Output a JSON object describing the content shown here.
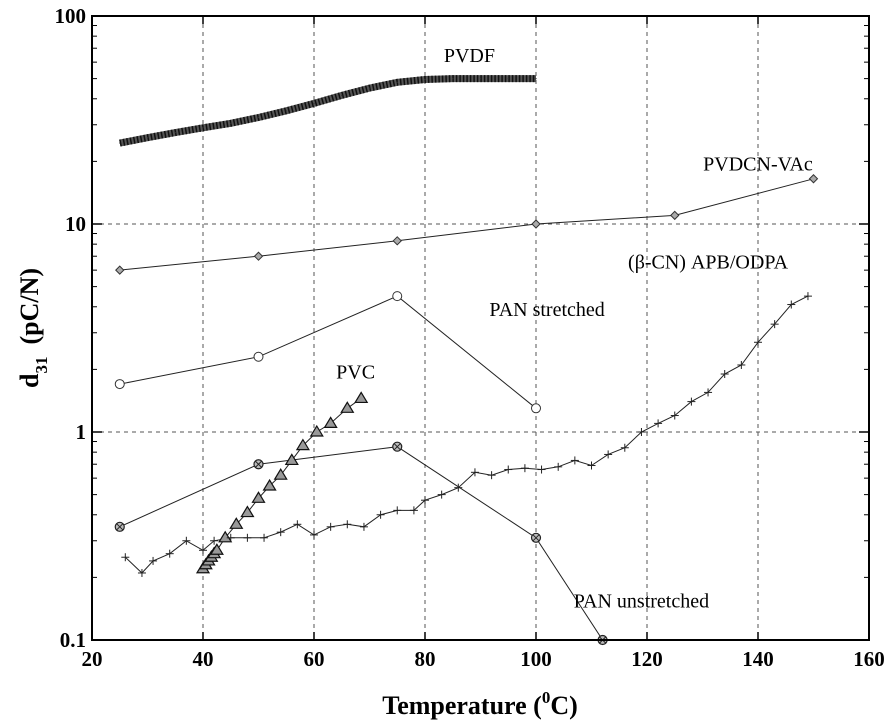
{
  "chart_data": {
    "type": "line",
    "xlabel_main": "Temperature (",
    "xlabel_sup": "0",
    "xlabel_end": "C)",
    "ylabel_main": "d",
    "ylabel_sub": "31",
    "ylabel_unit": "(pC/N)",
    "xlim": [
      20,
      160
    ],
    "ylim": [
      0.1,
      100
    ],
    "yscale": "log",
    "grid": true,
    "x_ticks": [
      20,
      40,
      60,
      80,
      100,
      120,
      140,
      160
    ],
    "x_tick_labels": [
      "20",
      "40",
      "60",
      "80",
      "100",
      "120",
      "140",
      "160"
    ],
    "y_ticks": [
      0.1,
      1,
      10,
      100
    ],
    "y_tick_labels": [
      "0.1",
      "1",
      "10",
      "100"
    ],
    "series": [
      {
        "name": "PVDF",
        "marker": "thick-band",
        "x": [
          25,
          30,
          35,
          40,
          45,
          50,
          55,
          60,
          65,
          70,
          75,
          80,
          85,
          90,
          95,
          100
        ],
        "y": [
          24.5,
          26,
          27.5,
          29,
          30.5,
          32.5,
          35,
          38,
          41.5,
          45,
          48,
          49.5,
          50,
          50,
          50,
          50
        ]
      },
      {
        "name": "PVDCN-VAc",
        "marker": "diamond",
        "x": [
          25,
          50,
          75,
          100,
          125,
          150
        ],
        "y": [
          6,
          7,
          8.3,
          10,
          11,
          16.5
        ]
      },
      {
        "name": "PAN stretched",
        "marker": "circle",
        "x": [
          25,
          50,
          75,
          100
        ],
        "y": [
          1.7,
          2.3,
          4.5,
          1.3
        ]
      },
      {
        "name": "PAN unstretched",
        "marker": "circle-cross",
        "x": [
          25,
          50,
          75,
          100,
          112
        ],
        "y": [
          0.35,
          0.7,
          0.85,
          0.31,
          0.1
        ]
      },
      {
        "name": "PVC",
        "marker": "triangle",
        "x": [
          40,
          40.5,
          41,
          41.5,
          42,
          42.5,
          44,
          46,
          48,
          50,
          52,
          54,
          56,
          58,
          60.5,
          63,
          66,
          68.5
        ],
        "y": [
          0.22,
          0.23,
          0.24,
          0.25,
          0.26,
          0.27,
          0.31,
          0.36,
          0.41,
          0.48,
          0.55,
          0.62,
          0.73,
          0.86,
          1.0,
          1.1,
          1.3,
          1.45
        ]
      },
      {
        "name": "(β-CN) APB/ODPA",
        "marker": "plus",
        "x": [
          26,
          29,
          31,
          34,
          37,
          40,
          42,
          45,
          48,
          51,
          54,
          57,
          60,
          63,
          66,
          69,
          72,
          75,
          78,
          80,
          83,
          86,
          89,
          92,
          95,
          98,
          101,
          104,
          107,
          110,
          113,
          116,
          119,
          122,
          125,
          128,
          131,
          134,
          137,
          140,
          143,
          146,
          149
        ],
        "y": [
          0.25,
          0.21,
          0.24,
          0.26,
          0.3,
          0.27,
          0.3,
          0.31,
          0.31,
          0.31,
          0.33,
          0.36,
          0.32,
          0.35,
          0.36,
          0.35,
          0.4,
          0.42,
          0.42,
          0.47,
          0.5,
          0.54,
          0.64,
          0.62,
          0.66,
          0.67,
          0.66,
          0.68,
          0.73,
          0.69,
          0.78,
          0.84,
          1.0,
          1.1,
          1.2,
          1.4,
          1.55,
          1.9,
          2.1,
          2.7,
          3.3,
          4.1,
          4.5
        ]
      }
    ],
    "annotations": [
      {
        "text": "PVDF",
        "x": 88,
        "y": 65
      },
      {
        "text": "PVDCN-VAc",
        "x": 140,
        "y": 19.5
      },
      {
        "text": "(β-CN) APB/ODPA",
        "x": 131,
        "y": 6.6
      },
      {
        "text": "PAN stretched",
        "x": 102,
        "y": 3.9
      },
      {
        "text": "PVC",
        "x": 67.5,
        "y": 1.95
      },
      {
        "text": "PAN unstretched",
        "x": 119,
        "y": 0.155
      }
    ]
  }
}
